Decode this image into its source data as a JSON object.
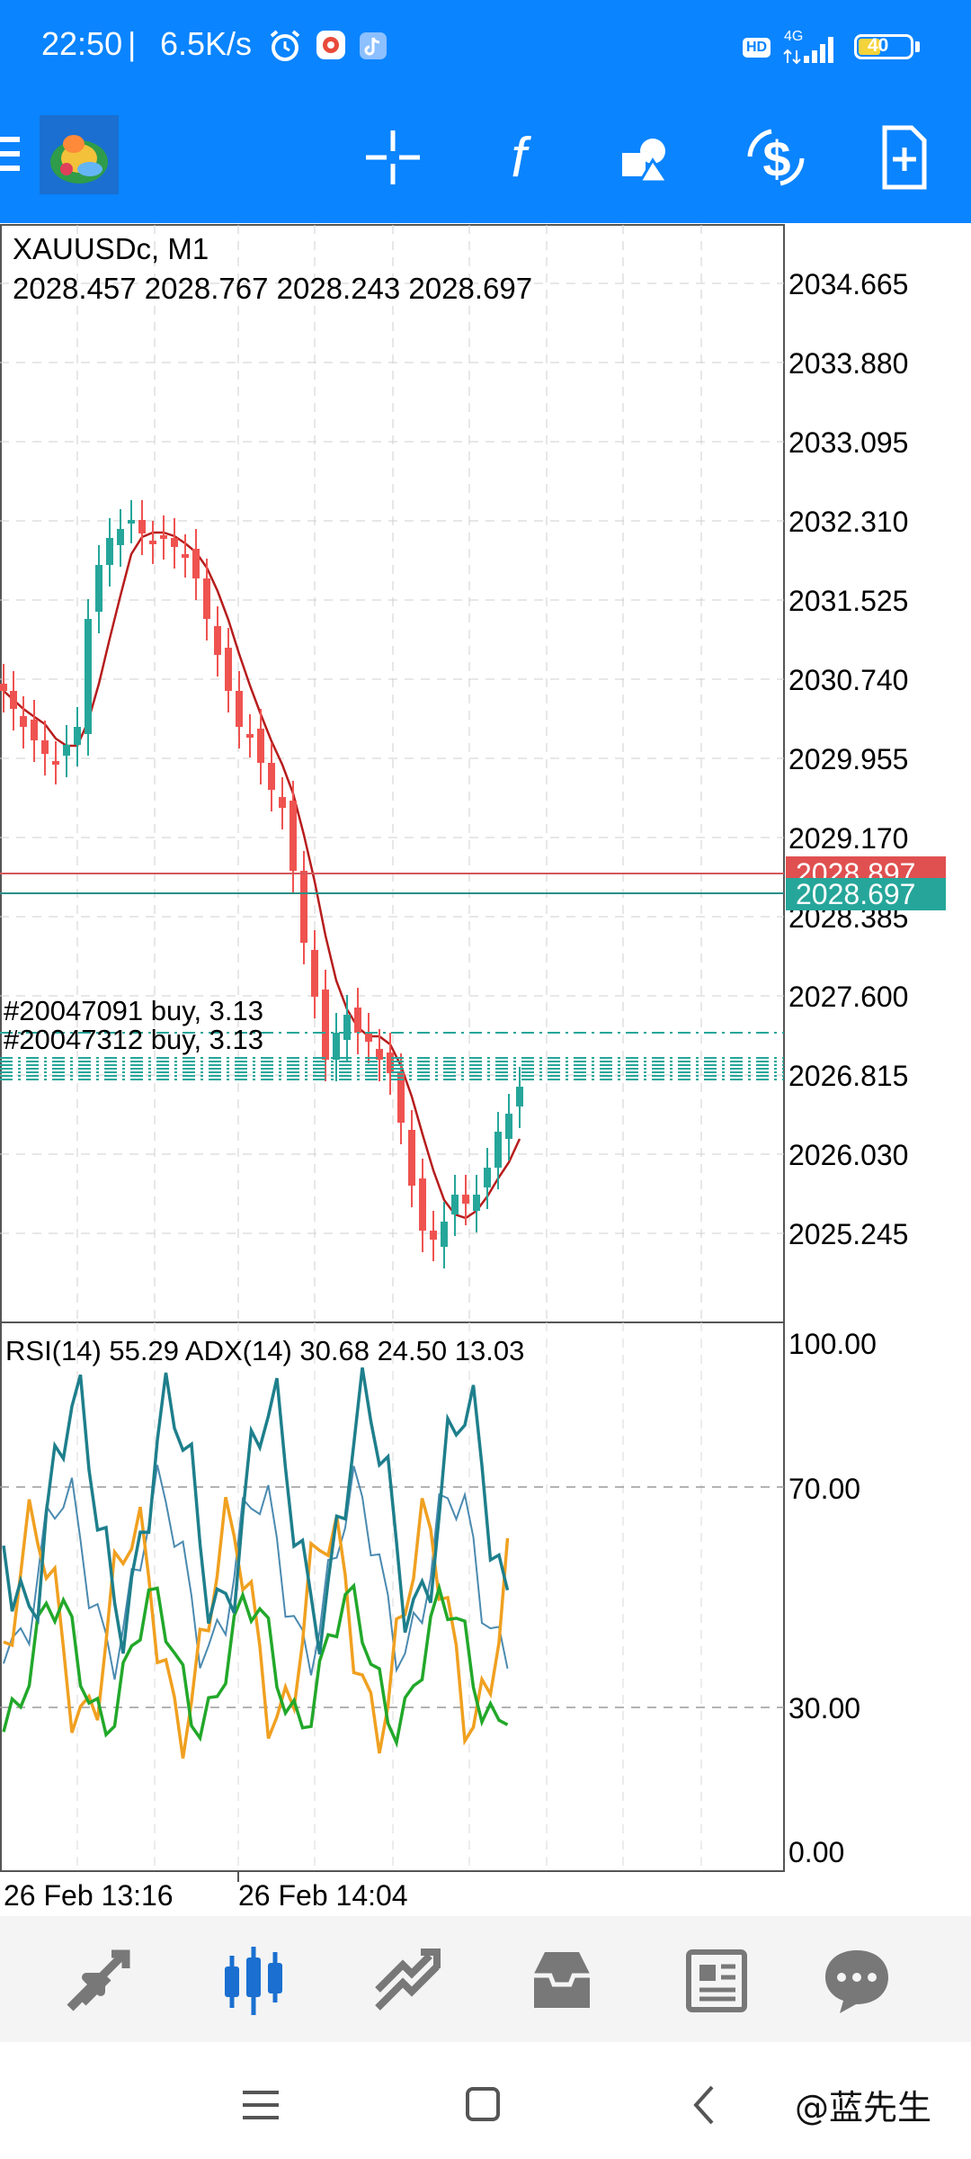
{
  "status_bar": {
    "time": "22:50",
    "speed": "6.5K/s",
    "network": "4G",
    "hd": "HD",
    "battery": "40"
  },
  "toolbar": {
    "icons": [
      "menu-icon",
      "app-logo",
      "crosshair-icon",
      "function-icon",
      "objects-icon",
      "trade-icon",
      "new-order-icon"
    ]
  },
  "chart": {
    "symbol": "XAUUSDc, M1",
    "ohlc": "2028.457 2028.767 2028.243 2028.697",
    "price_axis": [
      "2034.665",
      "2033.880",
      "2033.095",
      "2032.310",
      "2031.525",
      "2030.740",
      "2029.955",
      "2029.170",
      "2028.385",
      "2027.600",
      "2026.815",
      "2026.030",
      "2025.245"
    ],
    "ask_price": "2028.897",
    "bid_price": "2028.697",
    "orders": [
      "#20047091 buy, 3.13",
      "#20047312 buy, 3.13"
    ],
    "indicator_label": "RSI(14) 55.29 ADX(14) 30.68 24.50 13.03",
    "indicator_axis": [
      "100.00",
      "70.00",
      "30.00",
      "0.00"
    ],
    "time_axis": [
      "26 Feb 13:16",
      "26 Feb 14:04"
    ],
    "colors": {
      "bull": "#26a69a",
      "bear": "#ef5350",
      "ma": "#b71c1c",
      "adx": "#1e7f8c",
      "di_plus": "#22a82a",
      "di_minus": "#f0a020",
      "rsi": "#4a8ab0"
    }
  },
  "bottom_nav": {
    "items": [
      "quotes-icon",
      "chart-icon",
      "trade-icon",
      "history-icon",
      "news-icon",
      "messages-icon"
    ],
    "active": "chart-icon"
  },
  "watermark": "@蓝先生"
}
